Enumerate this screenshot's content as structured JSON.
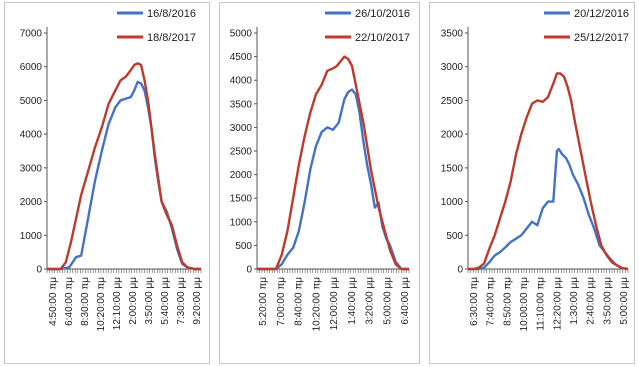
{
  "colors": {
    "blue": "#4472C4",
    "red": "#C0392B",
    "axis": "#555555",
    "frame": "#c8c8c8"
  },
  "chart_data": [
    {
      "type": "line",
      "ylim": [
        0,
        7000
      ],
      "yticks": [
        0,
        1000,
        2000,
        3000,
        4000,
        5000,
        6000,
        7000
      ],
      "xticks": [
        "4:50:00 πμ",
        "6:40:00 πμ",
        "8:30:00 πμ",
        "10:20:00 πμ",
        "12:10:00 μμ",
        "2:00:00 μμ",
        "3:50:00 μμ",
        "5:40:00 μμ",
        "7:30:00 μμ",
        "9:20:00 μμ"
      ],
      "legend_position": "top-right",
      "series": [
        {
          "name": "16/8/2016",
          "color": "blue",
          "x": [
            0,
            0.8,
            1.3,
            1.7,
            2.0,
            2.4,
            2.8,
            3.2,
            3.6,
            4.0,
            4.3,
            4.6,
            4.9,
            5.1,
            5.3,
            5.5,
            5.7,
            5.9,
            6.1,
            6.3,
            6.5,
            6.7,
            7.0,
            7.3,
            7.6,
            7.9,
            8.2,
            8.6,
            9.0
          ],
          "y": [
            0,
            0,
            50,
            350,
            400,
            1500,
            2600,
            3500,
            4300,
            4800,
            5000,
            5050,
            5100,
            5300,
            5550,
            5500,
            5300,
            4800,
            4200,
            3300,
            2600,
            2000,
            1700,
            1200,
            600,
            150,
            50,
            0,
            0
          ]
        },
        {
          "name": "18/8/2017",
          "color": "red",
          "x": [
            0,
            0.8,
            1.1,
            1.4,
            1.7,
            2.0,
            2.4,
            2.8,
            3.2,
            3.6,
            4.0,
            4.3,
            4.6,
            4.9,
            5.1,
            5.3,
            5.5,
            5.7,
            5.9,
            6.1,
            6.3,
            6.5,
            6.7,
            7.0,
            7.3,
            7.6,
            7.9,
            8.2,
            8.6,
            9.0
          ],
          "y": [
            0,
            0,
            200,
            800,
            1500,
            2200,
            2900,
            3600,
            4200,
            4900,
            5300,
            5600,
            5700,
            5900,
            6050,
            6100,
            6050,
            5600,
            5000,
            4200,
            3400,
            2700,
            2000,
            1600,
            1300,
            700,
            200,
            50,
            0,
            0
          ]
        }
      ]
    },
    {
      "type": "line",
      "ylim": [
        0,
        5000
      ],
      "yticks": [
        0,
        500,
        1000,
        1500,
        2000,
        2500,
        3000,
        3500,
        4000,
        4500,
        5000
      ],
      "xticks": [
        "5:20:00 πμ",
        "7:00:00 πμ",
        "8:40:00 πμ",
        "10:20:00 πμ",
        "12:00:00 μμ",
        "1:40:00 μμ",
        "3:20:00 μμ",
        "5:00:00 μμ",
        "6:40:00 μμ"
      ],
      "legend_position": "top-right",
      "series": [
        {
          "name": "26/10/2016",
          "color": "blue",
          "x": [
            0,
            1.0,
            1.3,
            1.6,
            1.9,
            2.2,
            2.5,
            2.8,
            3.1,
            3.4,
            3.7,
            4.0,
            4.3,
            4.6,
            4.8,
            5.0,
            5.2,
            5.4,
            5.6,
            5.8,
            6.0,
            6.2,
            6.4,
            6.6,
            6.8,
            7.0,
            7.3,
            7.6,
            8.0
          ],
          "y": [
            0,
            0,
            100,
            300,
            450,
            800,
            1400,
            2100,
            2600,
            2900,
            3000,
            2950,
            3100,
            3600,
            3750,
            3800,
            3700,
            3300,
            2700,
            2200,
            1800,
            1300,
            1400,
            900,
            650,
            500,
            150,
            0,
            0
          ]
        },
        {
          "name": "22/10/2017",
          "color": "red",
          "x": [
            0,
            1.0,
            1.3,
            1.6,
            1.9,
            2.2,
            2.5,
            2.8,
            3.1,
            3.4,
            3.7,
            4.0,
            4.2,
            4.4,
            4.6,
            4.8,
            5.0,
            5.2,
            5.4,
            5.6,
            5.8,
            6.0,
            6.2,
            6.4,
            6.6,
            6.8,
            7.0,
            7.3,
            7.6,
            8.0
          ],
          "y": [
            0,
            0,
            300,
            800,
            1500,
            2200,
            2800,
            3300,
            3700,
            3900,
            4200,
            4250,
            4300,
            4400,
            4500,
            4450,
            4300,
            3900,
            3500,
            3100,
            2600,
            2100,
            1700,
            1300,
            1000,
            700,
            400,
            100,
            0,
            0
          ]
        }
      ]
    },
    {
      "type": "line",
      "ylim": [
        0,
        3500
      ],
      "yticks": [
        0,
        500,
        1000,
        1500,
        2000,
        2500,
        3000,
        3500
      ],
      "xticks": [
        "6:30:00 πμ",
        "7:40:00 πμ",
        "8:50:00 πμ",
        "10:00:00 πμ",
        "11:10:00 πμ",
        "12:20:00 μμ",
        "1:30:00 μμ",
        "2:40:00 μμ",
        "3:50:00 μμ",
        "5:00:00 μμ"
      ],
      "legend_position": "top-right",
      "series": [
        {
          "name": "20/12/2016",
          "color": "blue",
          "x": [
            0,
            0.3,
            0.6,
            0.9,
            1.2,
            1.5,
            1.8,
            2.1,
            2.4,
            2.7,
            3.0,
            3.3,
            3.6,
            3.9,
            4.2,
            4.5,
            4.8,
            5.0,
            5.1,
            5.3,
            5.5,
            5.7,
            5.9,
            6.2,
            6.5,
            6.8,
            7.1,
            7.4,
            7.7,
            8.0,
            8.3,
            8.6,
            9.0
          ],
          "y": [
            0,
            0,
            0,
            20,
            100,
            200,
            250,
            320,
            400,
            450,
            500,
            600,
            700,
            650,
            900,
            1000,
            1000,
            1750,
            1780,
            1700,
            1650,
            1550,
            1400,
            1250,
            1050,
            800,
            600,
            350,
            250,
            150,
            70,
            20,
            0
          ]
        },
        {
          "name": "25/12/2017",
          "color": "red",
          "x": [
            0,
            0.3,
            0.6,
            0.9,
            1.2,
            1.5,
            1.8,
            2.1,
            2.4,
            2.7,
            3.0,
            3.3,
            3.6,
            3.9,
            4.2,
            4.5,
            4.8,
            5.0,
            5.2,
            5.4,
            5.6,
            5.8,
            6.0,
            6.3,
            6.6,
            6.9,
            7.2,
            7.5,
            7.8,
            8.1,
            8.4,
            8.7,
            9.0
          ],
          "y": [
            0,
            0,
            20,
            80,
            300,
            500,
            750,
            1000,
            1300,
            1700,
            2000,
            2250,
            2450,
            2500,
            2480,
            2550,
            2750,
            2900,
            2900,
            2850,
            2700,
            2500,
            2200,
            1800,
            1400,
            1000,
            650,
            350,
            200,
            100,
            50,
            10,
            0
          ]
        }
      ]
    }
  ]
}
